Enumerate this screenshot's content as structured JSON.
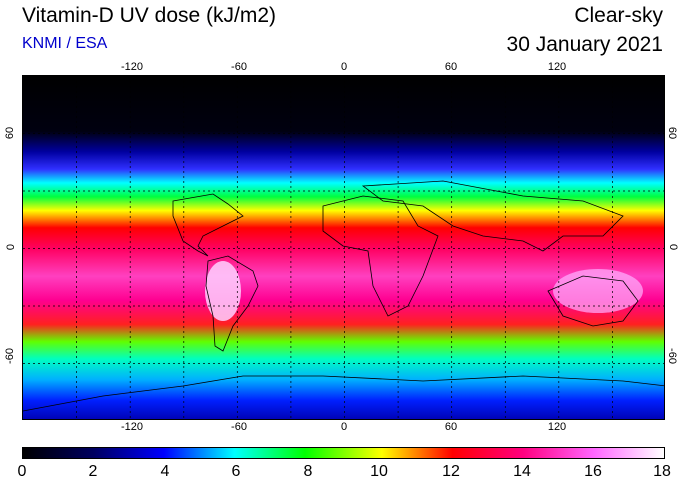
{
  "header": {
    "title": "Vitamin-D UV dose (kJ/m2)",
    "credit": "KNMI / ESA",
    "condition": "Clear-sky",
    "date": "30 January 2021"
  },
  "map": {
    "projection": "equirectangular",
    "lon_ticks": [
      "-120",
      "-60",
      "0",
      "60",
      "120"
    ],
    "lat_ticks": [
      "60",
      "0",
      "-60"
    ],
    "grid": "dotted every 30 degrees",
    "colormap_stops": [
      {
        "value": 0,
        "color": "#000000"
      },
      {
        "value": 2,
        "color": "#000060"
      },
      {
        "value": 4,
        "color": "#0000ff"
      },
      {
        "value": 6,
        "color": "#00ffff"
      },
      {
        "value": 8,
        "color": "#00ff00"
      },
      {
        "value": 10,
        "color": "#ffff00"
      },
      {
        "value": 12,
        "color": "#ff0000"
      },
      {
        "value": 14,
        "color": "#ff0080"
      },
      {
        "value": 16,
        "color": "#ff66ff"
      },
      {
        "value": 18,
        "color": "#ffffff"
      }
    ]
  },
  "colorbar": {
    "labels": [
      "0",
      "2",
      "4",
      "6",
      "8",
      "10",
      "12",
      "14",
      "16",
      "18"
    ]
  }
}
